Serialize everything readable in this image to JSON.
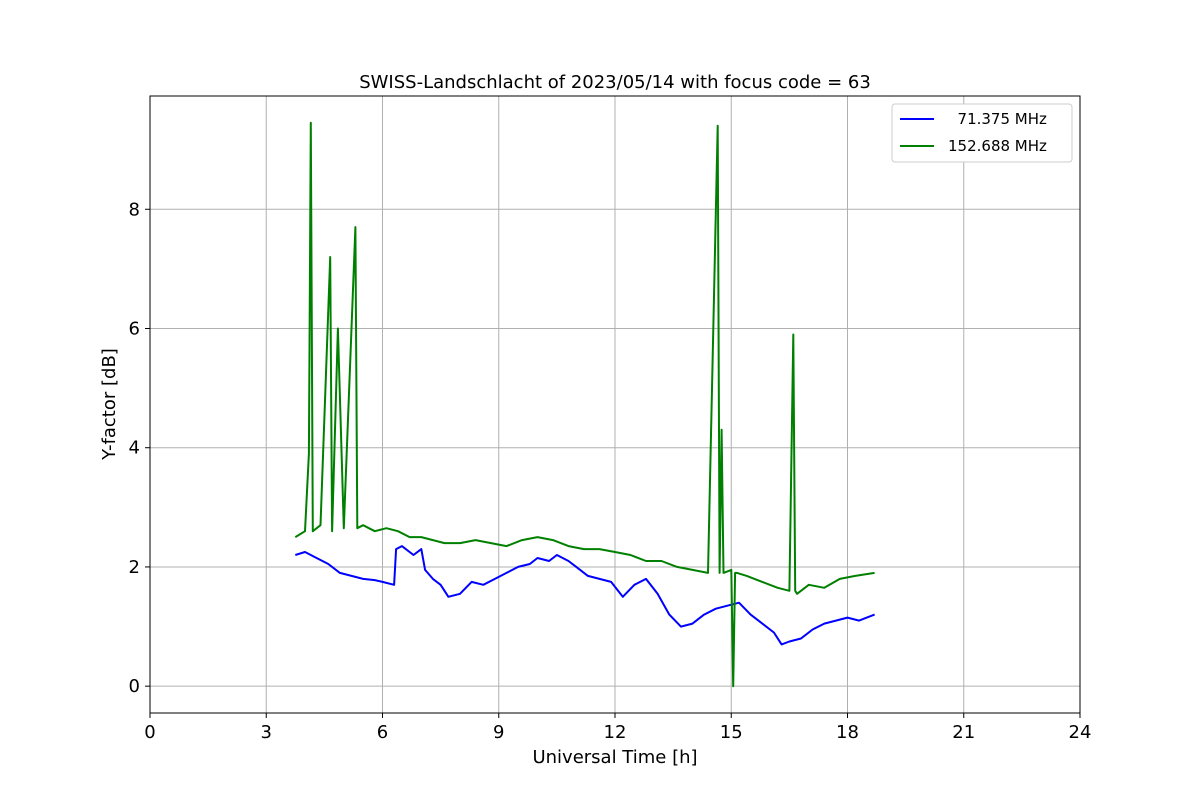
{
  "chart_data": {
    "type": "line",
    "title": "SWISS-Landschlacht of 2023/05/14 with focus code = 63",
    "xlabel": "Universal Time [h]",
    "ylabel": "Y-factor [dB]",
    "xlim": [
      0,
      24
    ],
    "ylim": [
      -0.45,
      9.9
    ],
    "xticks": [
      0,
      3,
      6,
      9,
      12,
      15,
      18,
      21,
      24
    ],
    "yticks": [
      0,
      2,
      4,
      6,
      8
    ],
    "grid": true,
    "legend_position": "top-right",
    "series": [
      {
        "name": "  71.375 MHz",
        "color": "#0000ff",
        "x": [
          3.75,
          4.0,
          4.3,
          4.6,
          4.9,
          5.2,
          5.5,
          5.8,
          6.0,
          6.3,
          6.35,
          6.5,
          6.8,
          7.0,
          7.1,
          7.3,
          7.5,
          7.7,
          8.0,
          8.3,
          8.6,
          8.9,
          9.2,
          9.5,
          9.8,
          10.0,
          10.3,
          10.5,
          10.8,
          11.0,
          11.3,
          11.6,
          11.9,
          12.2,
          12.5,
          12.8,
          13.1,
          13.4,
          13.7,
          14.0,
          14.3,
          14.6,
          14.9,
          15.2,
          15.5,
          15.8,
          16.1,
          16.3,
          16.5,
          16.8,
          17.1,
          17.4,
          17.7,
          18.0,
          18.3,
          18.7
        ],
        "y": [
          2.2,
          2.25,
          2.15,
          2.05,
          1.9,
          1.85,
          1.8,
          1.78,
          1.75,
          1.7,
          2.3,
          2.35,
          2.2,
          2.3,
          1.95,
          1.8,
          1.7,
          1.5,
          1.55,
          1.75,
          1.7,
          1.8,
          1.9,
          2.0,
          2.05,
          2.15,
          2.1,
          2.2,
          2.1,
          2.0,
          1.85,
          1.8,
          1.75,
          1.5,
          1.7,
          1.8,
          1.55,
          1.2,
          1.0,
          1.05,
          1.2,
          1.3,
          1.35,
          1.4,
          1.2,
          1.05,
          0.9,
          0.7,
          0.75,
          0.8,
          0.95,
          1.05,
          1.1,
          1.15,
          1.1,
          1.2
        ]
      },
      {
        "name": "152.688 MHz",
        "color": "#008000",
        "x": [
          3.75,
          4.0,
          4.1,
          4.15,
          4.2,
          4.4,
          4.65,
          4.7,
          4.85,
          5.0,
          5.3,
          5.35,
          5.5,
          5.8,
          6.1,
          6.4,
          6.7,
          7.0,
          7.3,
          7.6,
          8.0,
          8.4,
          8.8,
          9.2,
          9.6,
          10.0,
          10.4,
          10.8,
          11.2,
          11.6,
          12.0,
          12.4,
          12.8,
          13.2,
          13.6,
          14.0,
          14.4,
          14.65,
          14.7,
          14.75,
          14.8,
          15.0,
          15.05,
          15.1,
          15.15,
          15.4,
          15.8,
          16.2,
          16.5,
          16.6,
          16.65,
          16.7,
          17.0,
          17.4,
          17.8,
          18.2,
          18.7
        ],
        "y": [
          2.5,
          2.6,
          3.9,
          9.45,
          2.6,
          2.7,
          7.2,
          2.6,
          6.0,
          2.65,
          7.7,
          2.65,
          2.7,
          2.6,
          2.65,
          2.6,
          2.5,
          2.5,
          2.45,
          2.4,
          2.4,
          2.45,
          2.4,
          2.35,
          2.45,
          2.5,
          2.45,
          2.35,
          2.3,
          2.3,
          2.25,
          2.2,
          2.1,
          2.1,
          2.0,
          1.95,
          1.9,
          9.4,
          1.9,
          4.3,
          1.9,
          1.95,
          0.0,
          1.9,
          1.9,
          1.85,
          1.75,
          1.65,
          1.6,
          5.9,
          1.6,
          1.55,
          1.7,
          1.65,
          1.8,
          1.85,
          1.9
        ]
      }
    ]
  }
}
